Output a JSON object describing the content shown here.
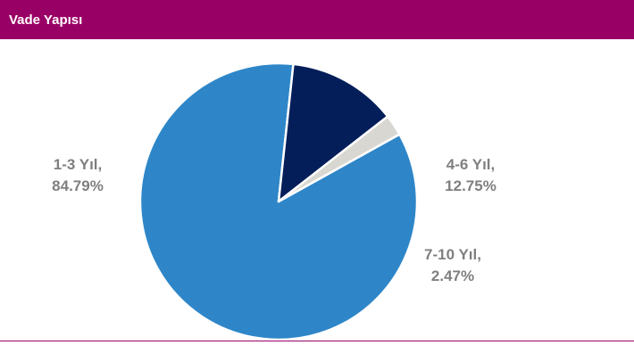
{
  "header": {
    "title": "Vade Yapısı"
  },
  "colors": {
    "header_bg": "#990066",
    "rule": "#990066",
    "label_text": "#7f7f7f",
    "slice_border": "#ffffff"
  },
  "chart_data": {
    "type": "pie",
    "title": "Vade Yapısı",
    "slices": [
      {
        "label": "1-3 Yıl,",
        "value": 84.79,
        "value_text": "84.79%",
        "color": "#2e86c8"
      },
      {
        "label": "4-6 Yıl,",
        "value": 12.75,
        "value_text": "12.75%",
        "color": "#041e5a"
      },
      {
        "label": "7-10 Yıl,",
        "value": 2.47,
        "value_text": "2.47%",
        "color": "#d9d7d2"
      }
    ],
    "legend": "none"
  }
}
